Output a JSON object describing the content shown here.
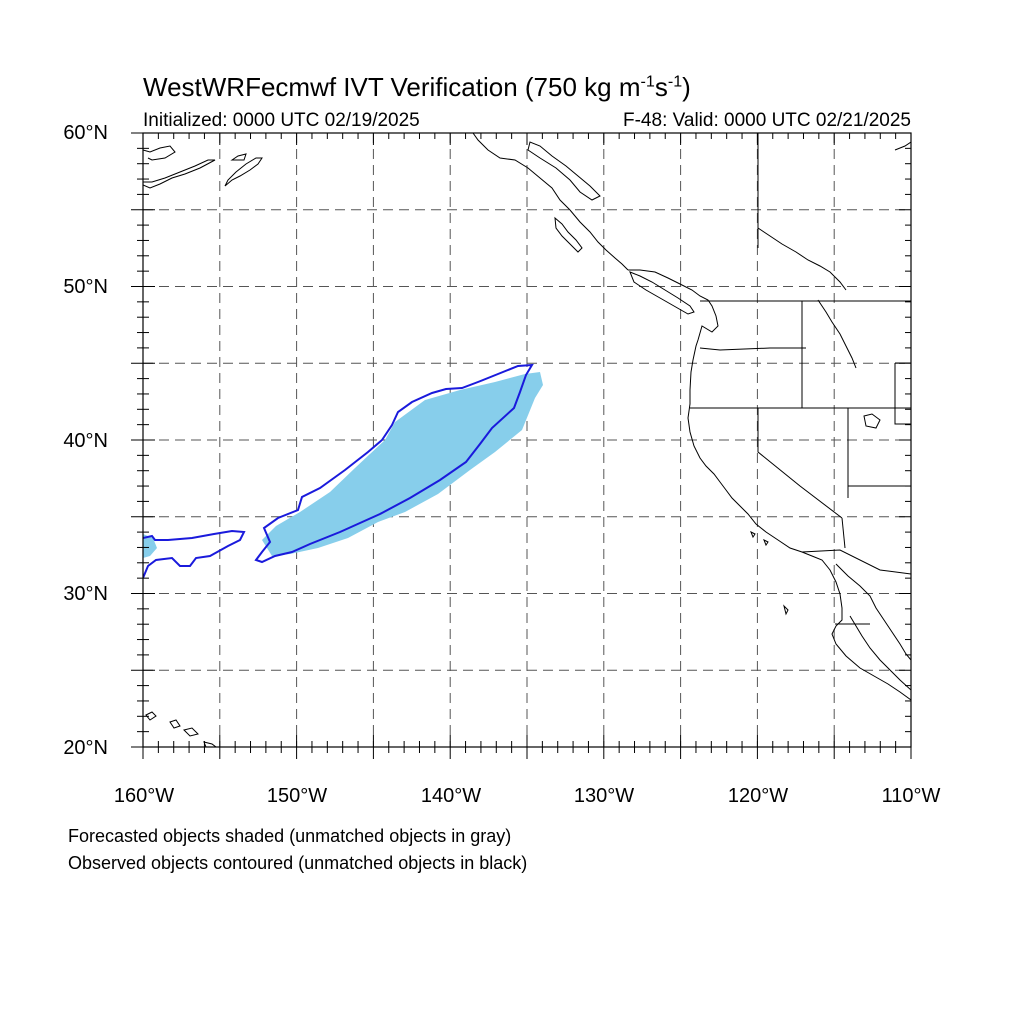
{
  "header": {
    "title_main": "WestWRFecmwf IVT Verification (750 kg m",
    "title_sup1": "-1",
    "title_mid": "s",
    "title_sup2": "-1",
    "title_end": ")",
    "initialized": "Initialized: 0000 UTC 02/19/2025",
    "valid": "F-48: Valid: 0000 UTC 02/21/2025"
  },
  "axes": {
    "lat_labels": [
      "60°N",
      "50°N",
      "40°N",
      "30°N",
      "20°N"
    ],
    "lon_labels": [
      "160°W",
      "150°W",
      "140°W",
      "130°W",
      "120°W",
      "110°W"
    ],
    "lat_range": [
      20,
      60
    ],
    "lon_range": [
      -160,
      -110
    ],
    "grid_lat_step": 5,
    "grid_lon_step": 5
  },
  "legend": {
    "line1": "Forecasted objects shaded (unmatched objects in gray)",
    "line2": "Observed objects contoured (unmatched objects in black)"
  },
  "colors": {
    "forecast_fill": "#87ceeb",
    "observed_contour": "#1a1adc",
    "coastline": "#000000",
    "grid": "#555555"
  }
}
